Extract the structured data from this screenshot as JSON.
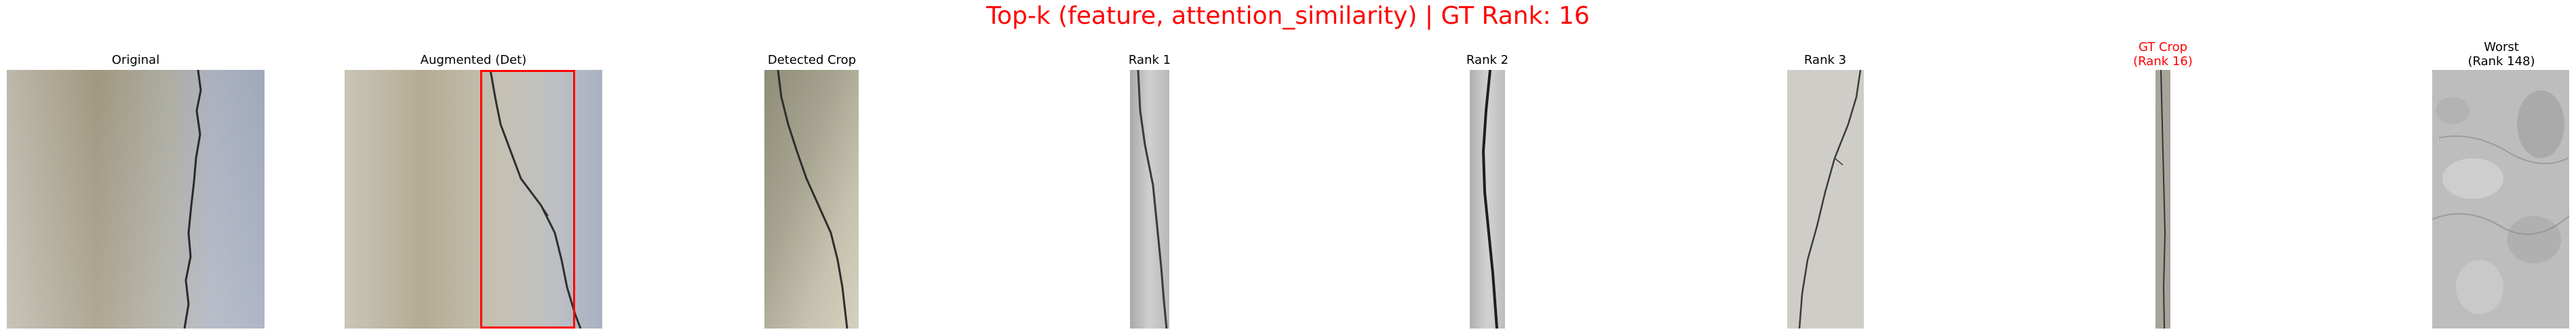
{
  "figure": {
    "title": "Top-k (feature, attention_similarity) | GT Rank: 16",
    "title_color": "#ff0000"
  },
  "panels": {
    "original": {
      "title": "Original",
      "image": "concrete-wall-crack"
    },
    "augmented": {
      "title": "Augmented (Det)",
      "image": "concrete-wall-crack-with-detection-box",
      "box_color": "#ff0000"
    },
    "detected_crop": {
      "title": "Detected Crop",
      "image": "crack-crop"
    },
    "rank1": {
      "title": "Rank 1",
      "image": "grey-crack-strip"
    },
    "rank2": {
      "title": "Rank 2",
      "image": "grey-crack-strip"
    },
    "rank3": {
      "title": "Rank 3",
      "image": "light-wall-crack"
    },
    "gt_crop": {
      "title_line1": "GT Crop",
      "title_line2": "(Rank 16)",
      "title_color": "#ff0000",
      "image": "narrow-crack-strip"
    },
    "worst": {
      "title_line1": "Worst",
      "title_line2": "(Rank 148)",
      "image": "textured-grey-surface"
    }
  }
}
